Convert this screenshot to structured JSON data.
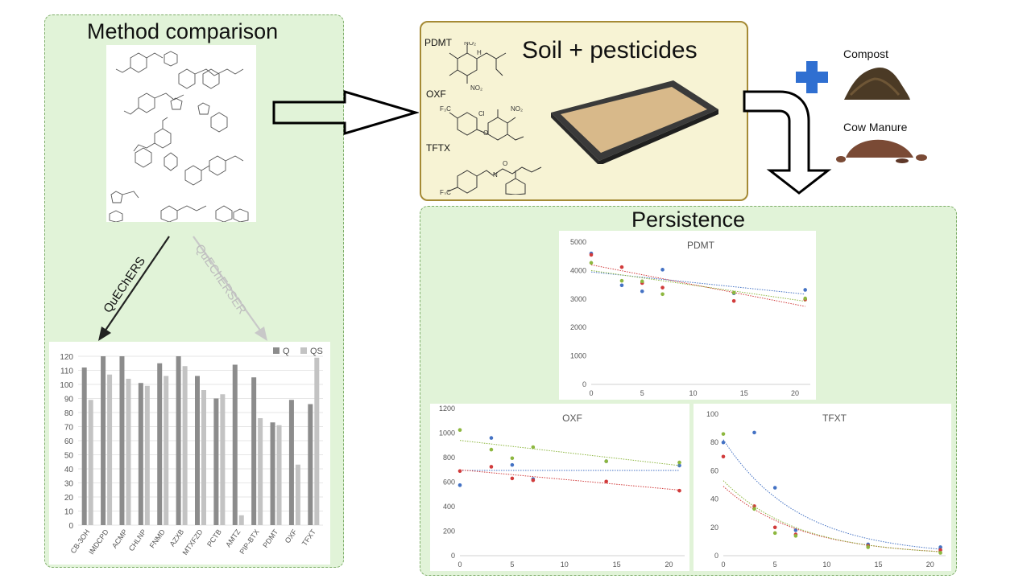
{
  "left_panel": {
    "title": "Method comparison"
  },
  "method_labels": {
    "quechers": "QuEChERS",
    "quecherser": "QuEChERSER"
  },
  "soil": {
    "title": "Soil + pesticides",
    "labels": [
      "PDMT",
      "OXF",
      "TFTX"
    ]
  },
  "amendments": {
    "compost": "Compost",
    "manure": "Cow Manure"
  },
  "persistence": {
    "title": "Persistence"
  },
  "colors": {
    "panel": "#e1f3d8",
    "border": "#7fae6a",
    "soilbox": "#f7f3d4",
    "plus": "#2f6fd1",
    "s1": "#4472c4",
    "s2": "#d13b3b",
    "s3": "#8db73f",
    "Q": "#8c8c8c",
    "QS": "#c3c3c3"
  },
  "chart_data": [
    {
      "type": "bar",
      "categories": [
        "CB-3OH",
        "IMDCPD",
        "ACMP",
        "CHLNP",
        "FNMD",
        "AZXB",
        "MTXFZD",
        "PCTB",
        "AMTZ",
        "PIP-BTX",
        "PDMT",
        "OXF",
        "TFXT"
      ],
      "series": [
        {
          "name": "Q",
          "values": [
            112,
            120,
            120,
            101,
            115,
            120,
            106,
            90,
            114,
            105,
            73,
            89,
            86
          ]
        },
        {
          "name": "QS",
          "values": [
            89,
            107,
            104,
            99,
            106,
            113,
            96,
            93,
            7,
            76,
            71,
            43,
            119
          ]
        }
      ],
      "yticks": [
        0,
        10,
        20,
        30,
        40,
        50,
        60,
        70,
        80,
        90,
        100,
        110,
        120
      ],
      "ylim": [
        0,
        120
      ],
      "legend": "top-right"
    },
    {
      "type": "scatter",
      "title": "PDMT",
      "xticks": [
        0,
        5,
        10,
        15,
        20
      ],
      "yticks": [
        0,
        1000,
        2000,
        3000,
        4000,
        5000
      ],
      "xlim": [
        0,
        21.5
      ],
      "ylim": [
        0,
        5000
      ],
      "series": [
        {
          "points": [
            [
              0,
              4600
            ],
            [
              3,
              3480
            ],
            [
              5,
              3270
            ],
            [
              7,
              4030
            ],
            [
              14,
              3200
            ],
            [
              21,
              3320
            ]
          ],
          "trend": [
            3950,
            3170
          ]
        },
        {
          "points": [
            [
              0,
              4550
            ],
            [
              3,
              4120
            ],
            [
              5,
              3560
            ],
            [
              7,
              3400
            ],
            [
              14,
              2930
            ],
            [
              21,
              2980
            ]
          ],
          "trend": [
            4200,
            2740
          ]
        },
        {
          "points": [
            [
              0,
              4270
            ],
            [
              3,
              3640
            ],
            [
              5,
              3620
            ],
            [
              7,
              3170
            ],
            [
              14,
              3220
            ],
            [
              21,
              3020
            ]
          ],
          "trend": [
            4000,
            2920
          ]
        }
      ]
    },
    {
      "type": "scatter",
      "title": "OXF",
      "xticks": [
        0,
        5,
        10,
        15,
        20
      ],
      "yticks": [
        0,
        200,
        400,
        600,
        800,
        1000,
        1200
      ],
      "xlim": [
        0,
        21.5
      ],
      "ylim": [
        0,
        1200
      ],
      "series": [
        {
          "points": [
            [
              0,
              575
            ],
            [
              3,
              960
            ],
            [
              5,
              740
            ],
            [
              7,
              625
            ],
            [
              14,
              770
            ],
            [
              21,
              735
            ]
          ],
          "trend": [
            695,
            695
          ]
        },
        {
          "points": [
            [
              0,
              690
            ],
            [
              3,
              725
            ],
            [
              5,
              630
            ],
            [
              7,
              615
            ],
            [
              14,
              605
            ],
            [
              21,
              530
            ]
          ],
          "trend": [
            700,
            535
          ]
        },
        {
          "points": [
            [
              0,
              1025
            ],
            [
              3,
              865
            ],
            [
              5,
              795
            ],
            [
              7,
              885
            ],
            [
              14,
              770
            ],
            [
              21,
              760
            ]
          ],
          "trend": [
            940,
            735
          ]
        }
      ]
    },
    {
      "type": "scatter",
      "title": "TFXT",
      "xticks": [
        0,
        5,
        10,
        15,
        20
      ],
      "yticks": [
        0,
        20,
        40,
        60,
        80,
        100
      ],
      "xlim": [
        0,
        21.5
      ],
      "ylim": [
        0,
        100
      ],
      "series": [
        {
          "points": [
            [
              0,
              80
            ],
            [
              3,
              87
            ],
            [
              5,
              48
            ],
            [
              7,
              18
            ],
            [
              14,
              8
            ],
            [
              21,
              6
            ]
          ],
          "decay": [
            82,
            0.137
          ]
        },
        {
          "points": [
            [
              0,
              70
            ],
            [
              3,
              35
            ],
            [
              5,
              20
            ],
            [
              7,
              15
            ],
            [
              14,
              7
            ],
            [
              21,
              4
            ]
          ],
          "decay": [
            49,
            0.135
          ]
        },
        {
          "points": [
            [
              0,
              86
            ],
            [
              3,
              33
            ],
            [
              5,
              16
            ],
            [
              7,
              14
            ],
            [
              14,
              6
            ],
            [
              21,
              2
            ]
          ],
          "decay": [
            53,
            0.14
          ]
        }
      ]
    }
  ]
}
